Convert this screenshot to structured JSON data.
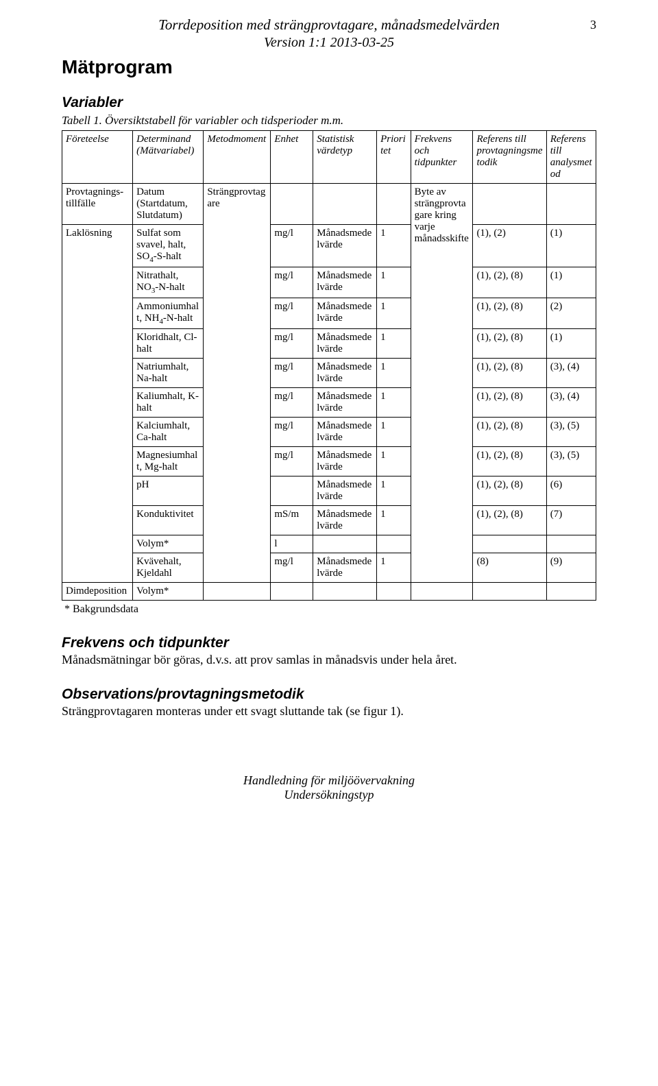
{
  "page_number": "3",
  "header": {
    "title": "Torrdeposition med strängprovtagare, månadsmedelvärden",
    "version": "Version 1:1 2013-03-25"
  },
  "matprogram_heading": "Mätprogram",
  "variabler_heading": "Variabler",
  "table_caption": "Tabell 1. Översiktstabell för variabler och tidsperioder m.m.",
  "columns": [
    "Företeelse",
    "Determinand (Mätvariabel)",
    "Metodmoment",
    "Enhet",
    "Statistisk värdetyp",
    "Prioritet",
    "Frekvens och tidpunkter",
    "Referens till provtagningsmetodik",
    "Referens till analysmetod"
  ],
  "row_group_foreteelse_1": "Provtagnings-tillfälle",
  "row_group_determinand_1": "Datum (Startdatum, Slutdatum)",
  "row_group_foreteelse_2": "Laklösning",
  "row_group_metodmoment": "Strängprovtagare",
  "row_group_frekvens": "Byte av strängprovtagare kring varje månadsskifte",
  "rows": [
    {
      "determinand_html": "Sulfat som svavel, halt, SO<sub>4</sub>-S-halt",
      "enhet": "mg/l",
      "stat": "Månadsmedelvärde",
      "prio": "1",
      "ref_prov": "(1), (2)",
      "ref_anal": "(1)"
    },
    {
      "determinand_html": "Nitrathalt, NO<sub>3</sub>-N-halt",
      "enhet": "mg/l",
      "stat": "Månadsmedelvärde",
      "prio": "1",
      "ref_prov": "(1), (2), (8)",
      "ref_anal": "(1)"
    },
    {
      "determinand_html": "Ammoniumhalt, NH<sub>4</sub>-N-halt",
      "enhet": "mg/l",
      "stat": "Månadsmedelvärde",
      "prio": "1",
      "ref_prov": "(1), (2), (8)",
      "ref_anal": "(2)"
    },
    {
      "determinand_html": "Kloridhalt, Cl-halt",
      "enhet": "mg/l",
      "stat": "Månadsmedelvärde",
      "prio": "1",
      "ref_prov": "(1), (2), (8)",
      "ref_anal": "(1)"
    },
    {
      "determinand_html": "Natriumhalt, Na-halt",
      "enhet": "mg/l",
      "stat": "Månadsmedelvärde",
      "prio": "1",
      "ref_prov": "(1), (2), (8)",
      "ref_anal": "(3), (4)"
    },
    {
      "determinand_html": "Kaliumhalt, K-halt",
      "enhet": "mg/l",
      "stat": "Månadsmedelvärde",
      "prio": "1",
      "ref_prov": "(1), (2), (8)",
      "ref_anal": "(3), (4)"
    },
    {
      "determinand_html": "Kalciumhalt, Ca-halt",
      "enhet": "mg/l",
      "stat": "Månadsmedelvärde",
      "prio": "1",
      "ref_prov": "(1), (2), (8)",
      "ref_anal": "(3), (5)"
    },
    {
      "determinand_html": "Magnesiumhalt, Mg-halt",
      "enhet": "mg/l",
      "stat": "Månadsmedelvärde",
      "prio": "1",
      "ref_prov": "(1), (2), (8)",
      "ref_anal": "(3), (5)"
    },
    {
      "determinand_html": "pH",
      "enhet": "",
      "stat": "Månadsmedelvärde",
      "prio": "1",
      "ref_prov": "(1), (2), (8)",
      "ref_anal": "(6)"
    },
    {
      "determinand_html": "Konduktivitet",
      "enhet": "mS/m",
      "stat": "Månadsmedelvärde",
      "prio": "1",
      "ref_prov": "(1), (2), (8)",
      "ref_anal": "(7)"
    },
    {
      "determinand_html": "Volym*",
      "enhet": "l",
      "stat": "",
      "prio": "",
      "ref_prov": "",
      "ref_anal": ""
    },
    {
      "determinand_html": "Kvävehalt, Kjeldahl",
      "enhet": "mg/l",
      "stat": "Månadsmedelvärde",
      "prio": "1",
      "ref_prov": "(8)",
      "ref_anal": "(9)"
    }
  ],
  "dimdeposition_label": "Dimdeposition",
  "dimdeposition_determinand": "Volym*",
  "footnote": "* Bakgrundsdata",
  "frekvens_heading": "Frekvens och tidpunkter",
  "frekvens_text": "Månadsmätningar bör göras, d.v.s. att prov samlas in månadsvis under hela året.",
  "obs_heading": "Observations/provtagningsmetodik",
  "obs_text": "Strängprovtagaren monteras under ett svagt sluttande tak (se figur 1).",
  "footer_line1": "Handledning för miljöövervakning",
  "footer_line2": "Undersökningstyp"
}
